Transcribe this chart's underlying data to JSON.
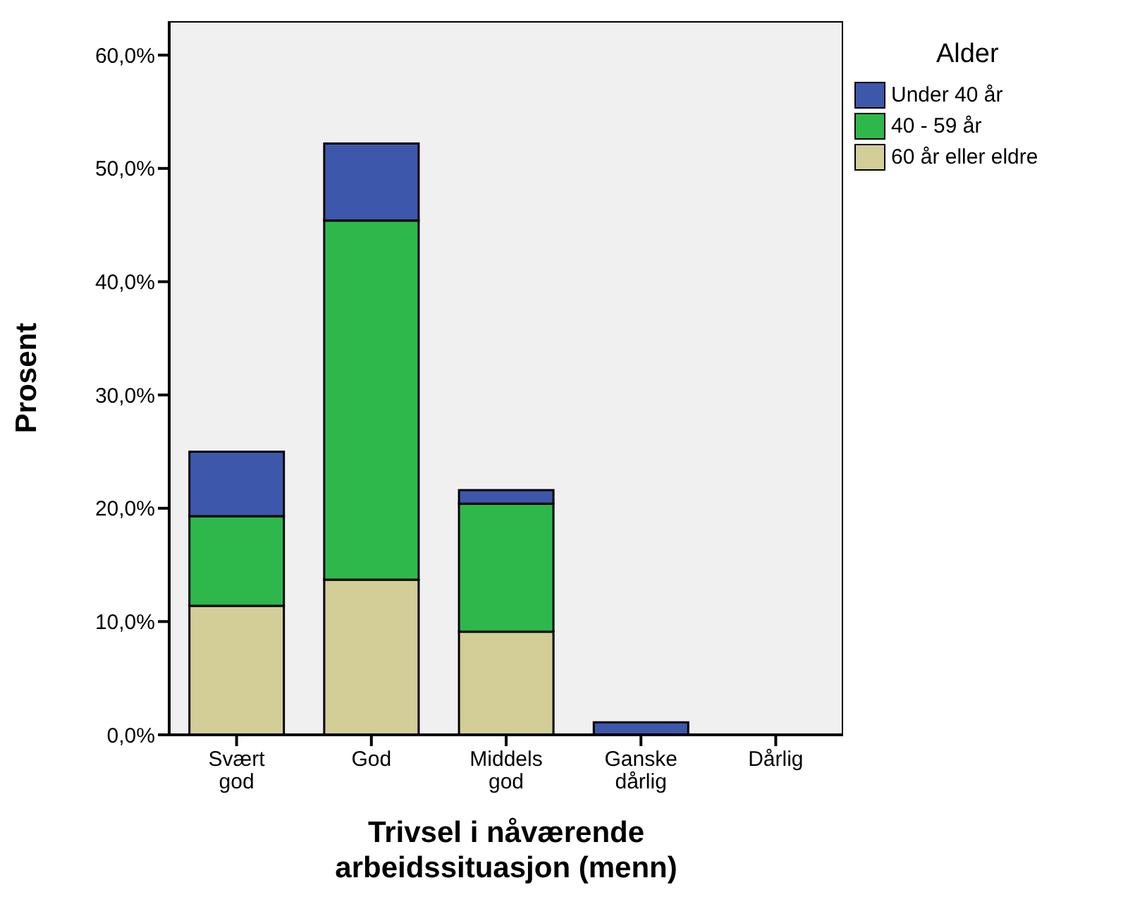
{
  "chart_data": {
    "type": "bar",
    "stacked": true,
    "xlabel": "Trivsel i nåværende arbeidssituasjon (menn)",
    "ylabel": "Prosent",
    "legend_title": "Alder",
    "legend": "top right",
    "categories": [
      "Svært god",
      "God",
      "Middels god",
      "Ganske dårlig",
      "Dårlig"
    ],
    "series": [
      {
        "name": "60 år eller eldre",
        "color": "#d3ce97",
        "values": [
          11.4,
          13.7,
          9.1,
          0,
          0
        ]
      },
      {
        "name": "40 - 59 år",
        "color": "#2eb84b",
        "values": [
          7.9,
          31.7,
          11.3,
          0,
          0
        ]
      },
      {
        "name": "Under 40 år",
        "color": "#3d57aa",
        "values": [
          5.7,
          6.8,
          1.2,
          1.1,
          0
        ]
      }
    ],
    "ylim": [
      0,
      63
    ],
    "yticks": [
      {
        "value": 0,
        "label": "0,0%"
      },
      {
        "value": 10,
        "label": "10,0%"
      },
      {
        "value": 20,
        "label": "20,0%"
      },
      {
        "value": 30,
        "label": "30,0%"
      },
      {
        "value": 40,
        "label": "40,0%"
      },
      {
        "value": 50,
        "label": "50,0%"
      },
      {
        "value": 60,
        "label": "60,0%"
      }
    ]
  }
}
